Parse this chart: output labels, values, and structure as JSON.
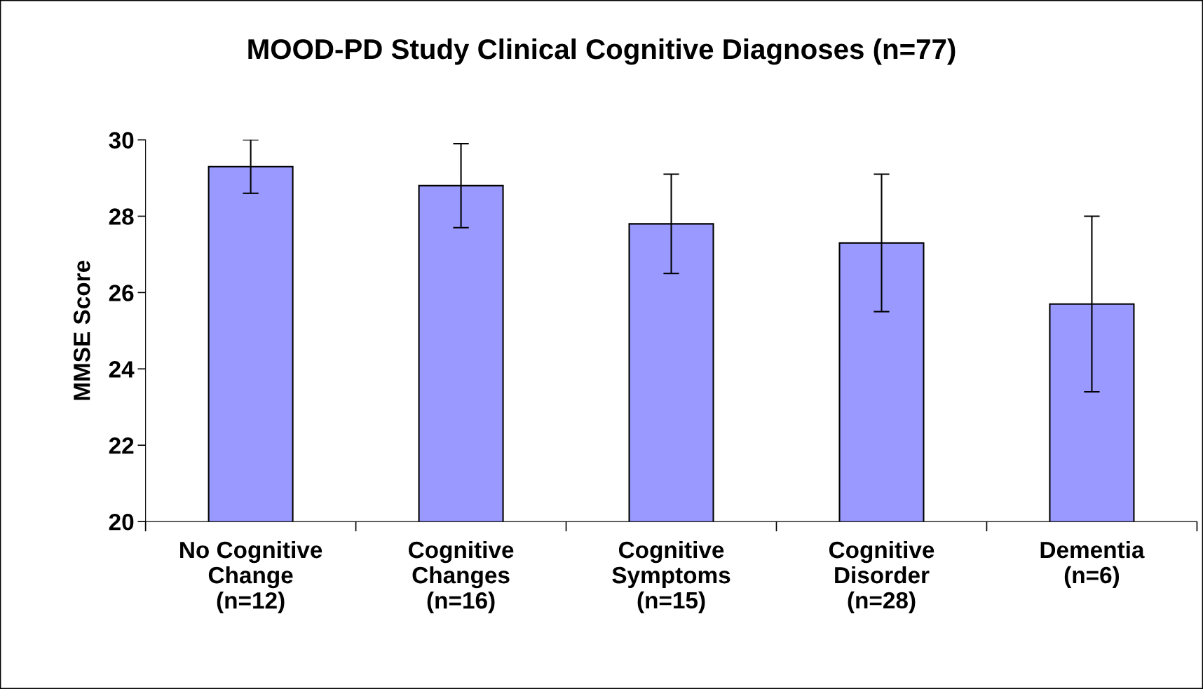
{
  "chart_data": {
    "type": "bar",
    "title": "MOOD-PD Study Clinical Cognitive Diagnoses (n=77)",
    "ylabel": "MMSE Score",
    "categories": [
      "No Cognitive\nChange\n(n=12)",
      "Cognitive\nChanges\n(n=16)",
      "Cognitive\nSymptoms\n(n=15)",
      "Cognitive\nDisorder\n(n=28)",
      "Dementia\n(n=6)"
    ],
    "values": [
      29.3,
      28.8,
      27.8,
      27.3,
      25.7
    ],
    "errors": [
      0.7,
      1.1,
      1.3,
      1.8,
      2.3
    ],
    "color": "#9999ff",
    "ylim": [
      20,
      30
    ],
    "yticks": [
      20,
      22,
      24,
      26,
      28,
      30
    ],
    "grid": false
  }
}
